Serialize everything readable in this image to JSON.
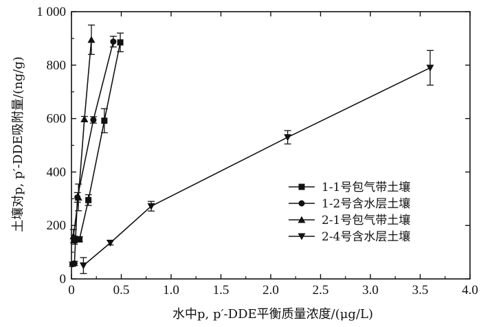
{
  "chart_data": {
    "type": "line",
    "title": "",
    "xlabel": "水中p, p′-DDE平衡质量浓度/(μg/L)",
    "ylabel": "土壤对p, p′-DDE吸附量/(ng/g)",
    "xlim": [
      0,
      4.0
    ],
    "ylim": [
      0,
      1000
    ],
    "x_ticks": [
      0,
      0.5,
      1.0,
      1.5,
      2.0,
      2.5,
      3.0,
      3.5,
      4.0
    ],
    "x_tick_labels": [
      "0",
      "0.5",
      "1.0",
      "1.5",
      "2.0",
      "2.5",
      "3.0",
      "3.5",
      "4.0"
    ],
    "y_ticks": [
      0,
      200,
      400,
      600,
      800,
      1000
    ],
    "y_tick_labels": [
      "0",
      "200",
      "400",
      "600",
      "800",
      "1 000"
    ],
    "legend_position": "lower-right",
    "series": [
      {
        "name": "1-1号包气带土壤",
        "marker": "square",
        "points": [
          {
            "x": 0.03,
            "y": 145,
            "err": 15
          },
          {
            "x": 0.08,
            "y": 148,
            "err": 10
          },
          {
            "x": 0.17,
            "y": 295,
            "err": 20
          },
          {
            "x": 0.33,
            "y": 592,
            "err": 45
          },
          {
            "x": 0.49,
            "y": 885,
            "err": 35
          }
        ]
      },
      {
        "name": "1-2号含水层土壤",
        "marker": "circle",
        "points": [
          {
            "x": 0.01,
            "y": 55,
            "err": 8
          },
          {
            "x": 0.03,
            "y": 58,
            "err": 8
          },
          {
            "x": 0.06,
            "y": 305,
            "err": 18
          },
          {
            "x": 0.22,
            "y": 595,
            "err": 12
          },
          {
            "x": 0.42,
            "y": 888,
            "err": 20
          }
        ]
      },
      {
        "name": "2-1号包气带土壤",
        "marker": "triangle-up",
        "points": [
          {
            "x": 0.02,
            "y": 160,
            "err": 25
          },
          {
            "x": 0.07,
            "y": 305,
            "err": 50
          },
          {
            "x": 0.13,
            "y": 598,
            "err": 10
          },
          {
            "x": 0.2,
            "y": 895,
            "err": 55
          }
        ]
      },
      {
        "name": "2-4号含水层土壤",
        "marker": "triangle-down",
        "points": [
          {
            "x": 0.12,
            "y": 50,
            "err": 30
          },
          {
            "x": 0.39,
            "y": 135,
            "err": 8
          },
          {
            "x": 0.8,
            "y": 272,
            "err": 18
          },
          {
            "x": 2.17,
            "y": 530,
            "err": 25
          },
          {
            "x": 3.6,
            "y": 790,
            "err": 65
          }
        ]
      }
    ]
  }
}
